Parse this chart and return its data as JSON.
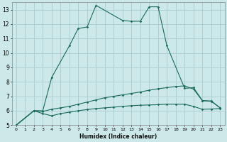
{
  "xlabel": "Humidex (Indice chaleur)",
  "background_color": "#cce8e8",
  "grid_color": "#aacccc",
  "line_color": "#1a6b5a",
  "xlim": [
    -0.5,
    23.5
  ],
  "ylim": [
    5,
    13.5
  ],
  "xtick_vals": [
    0,
    1,
    2,
    3,
    4,
    5,
    6,
    7,
    8,
    9,
    10,
    11,
    12,
    13,
    14,
    15,
    16,
    17,
    18,
    19,
    20,
    21,
    22,
    23
  ],
  "ytick_vals": [
    5,
    6,
    7,
    8,
    9,
    10,
    11,
    12,
    13
  ],
  "series": [
    {
      "x": [
        0,
        2,
        3,
        4,
        6,
        7,
        8,
        9,
        12,
        13,
        14,
        15,
        16,
        17,
        19,
        20,
        21,
        22,
        23
      ],
      "y": [
        5,
        6,
        6,
        8.3,
        10.5,
        11.7,
        11.8,
        13.3,
        12.25,
        12.2,
        12.2,
        13.2,
        13.2,
        10.5,
        7.55,
        7.6,
        6.7,
        6.65,
        6.2
      ]
    },
    {
      "x": [
        0,
        2,
        3,
        4,
        5,
        6,
        7,
        8,
        9,
        10,
        11,
        12,
        13,
        14,
        15,
        16,
        17,
        18,
        19,
        20,
        21,
        22,
        23
      ],
      "y": [
        5,
        6,
        5.95,
        6.1,
        6.2,
        6.3,
        6.45,
        6.6,
        6.75,
        6.9,
        7.0,
        7.1,
        7.2,
        7.3,
        7.42,
        7.52,
        7.6,
        7.68,
        7.72,
        7.5,
        6.7,
        6.68,
        6.2
      ]
    },
    {
      "x": [
        0,
        2,
        3,
        4,
        5,
        6,
        7,
        8,
        9,
        10,
        11,
        12,
        13,
        14,
        15,
        16,
        17,
        18,
        19,
        20,
        21,
        22,
        23
      ],
      "y": [
        5,
        6,
        5.8,
        5.65,
        5.8,
        5.9,
        6.0,
        6.08,
        6.15,
        6.2,
        6.25,
        6.3,
        6.35,
        6.38,
        6.4,
        6.42,
        6.45,
        6.45,
        6.45,
        6.3,
        6.1,
        6.12,
        6.15
      ]
    }
  ]
}
